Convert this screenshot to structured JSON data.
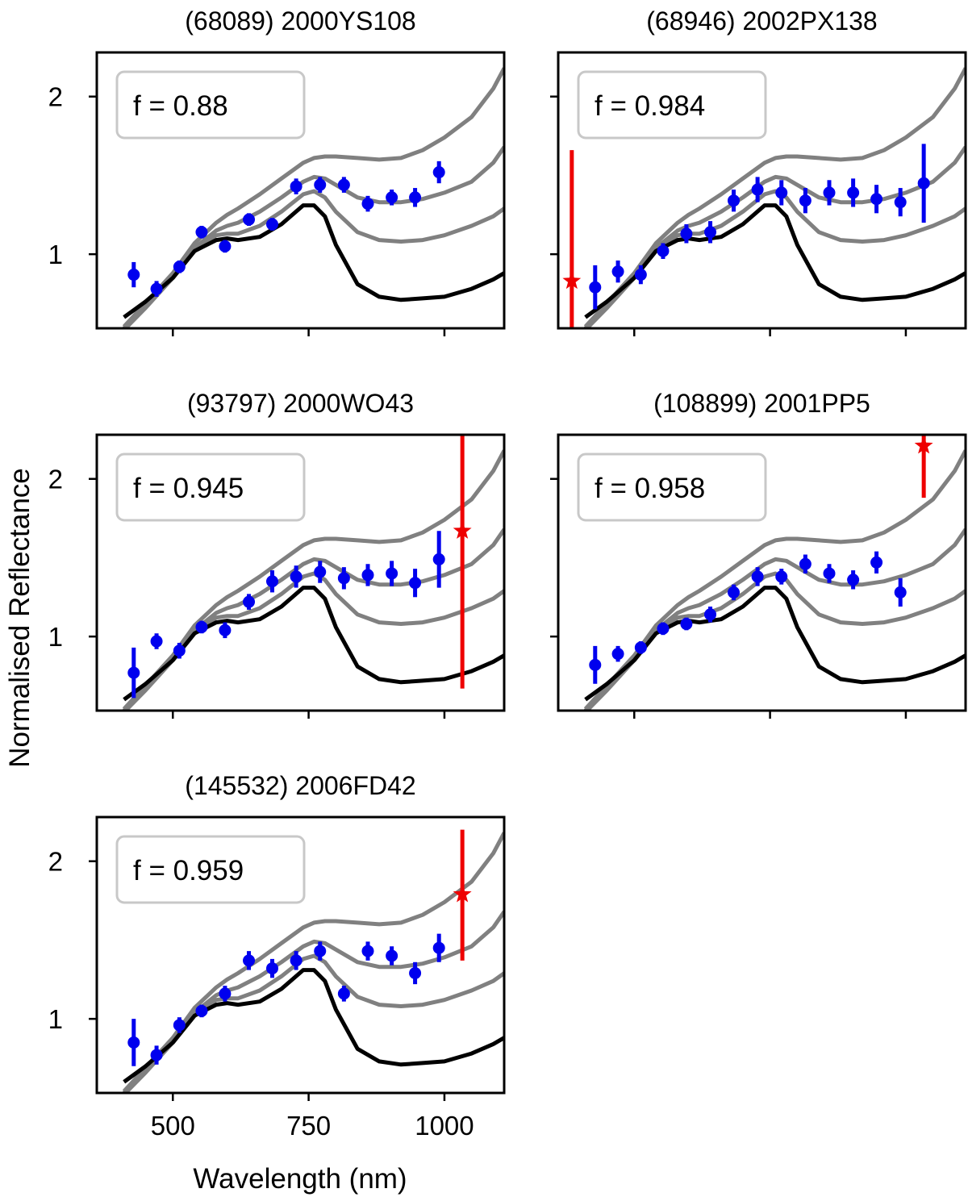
{
  "figure": {
    "ylabel": "Normalised Reflectance",
    "xlabel": "Wavelength (nm)"
  },
  "colors": {
    "obs": "#0000ee",
    "outlier": "#ee0000",
    "model": "#808080",
    "base": "#000000",
    "legend_border": "#c8c8c8"
  },
  "chart_data": [
    {
      "type": "scatter",
      "title": "(68089) 2000YS108",
      "legend": "f = 0.88",
      "xlim": [
        360,
        1110
      ],
      "ylim": [
        0.53,
        2.28
      ],
      "xticks": [
        500,
        750,
        1000
      ],
      "xtick_labels": [
        "",
        "",
        ""
      ],
      "yticks": [
        1,
        2
      ],
      "ytick_labels": [
        "1",
        "2"
      ],
      "points": [
        {
          "x": 428,
          "y": 0.87,
          "err": 0.08
        },
        {
          "x": 470,
          "y": 0.78,
          "err": 0.05
        },
        {
          "x": 512,
          "y": 0.92,
          "err": 0.04
        },
        {
          "x": 553,
          "y": 1.14,
          "err": 0.04
        },
        {
          "x": 596,
          "y": 1.05,
          "err": 0.04
        },
        {
          "x": 640,
          "y": 1.22,
          "err": 0.04
        },
        {
          "x": 683,
          "y": 1.19,
          "err": 0.04
        },
        {
          "x": 727,
          "y": 1.43,
          "err": 0.05
        },
        {
          "x": 771,
          "y": 1.44,
          "err": 0.05
        },
        {
          "x": 815,
          "y": 1.44,
          "err": 0.05
        },
        {
          "x": 859,
          "y": 1.32,
          "err": 0.05
        },
        {
          "x": 903,
          "y": 1.36,
          "err": 0.05
        },
        {
          "x": 946,
          "y": 1.36,
          "err": 0.06
        },
        {
          "x": 990,
          "y": 1.52,
          "err": 0.07
        }
      ],
      "outliers": []
    },
    {
      "type": "scatter",
      "title": "(68946) 2002PX138",
      "legend": "f = 0.984",
      "xlim": [
        360,
        1110
      ],
      "ylim": [
        0.53,
        2.28
      ],
      "xticks": [
        500,
        750,
        1000
      ],
      "xtick_labels": [
        "",
        "",
        ""
      ],
      "yticks": [
        1,
        2
      ],
      "ytick_labels": [
        "",
        ""
      ],
      "points": [
        {
          "x": 428,
          "y": 0.79,
          "err": 0.14
        },
        {
          "x": 470,
          "y": 0.89,
          "err": 0.07
        },
        {
          "x": 512,
          "y": 0.87,
          "err": 0.06
        },
        {
          "x": 553,
          "y": 1.02,
          "err": 0.05
        },
        {
          "x": 596,
          "y": 1.13,
          "err": 0.06
        },
        {
          "x": 640,
          "y": 1.14,
          "err": 0.07
        },
        {
          "x": 683,
          "y": 1.34,
          "err": 0.07
        },
        {
          "x": 727,
          "y": 1.41,
          "err": 0.08
        },
        {
          "x": 771,
          "y": 1.39,
          "err": 0.08
        },
        {
          "x": 815,
          "y": 1.34,
          "err": 0.08
        },
        {
          "x": 859,
          "y": 1.39,
          "err": 0.08
        },
        {
          "x": 903,
          "y": 1.39,
          "err": 0.09
        },
        {
          "x": 946,
          "y": 1.35,
          "err": 0.09
        },
        {
          "x": 990,
          "y": 1.33,
          "err": 0.09
        },
        {
          "x": 1033,
          "y": 1.45,
          "err": 0.25
        }
      ],
      "outliers": [
        {
          "x": 385,
          "y": 0.83,
          "err_low": 0.3,
          "err_high": 1.66
        }
      ]
    },
    {
      "type": "scatter",
      "title": "(93797) 2000WO43",
      "legend": "f = 0.945",
      "xlim": [
        360,
        1110
      ],
      "ylim": [
        0.53,
        2.28
      ],
      "xticks": [
        500,
        750,
        1000
      ],
      "xtick_labels": [
        "",
        "",
        ""
      ],
      "yticks": [
        1,
        2
      ],
      "ytick_labels": [
        "1",
        "2"
      ],
      "points": [
        {
          "x": 428,
          "y": 0.77,
          "err": 0.16
        },
        {
          "x": 470,
          "y": 0.97,
          "err": 0.05
        },
        {
          "x": 512,
          "y": 0.91,
          "err": 0.05
        },
        {
          "x": 553,
          "y": 1.06,
          "err": 0.04
        },
        {
          "x": 596,
          "y": 1.04,
          "err": 0.05
        },
        {
          "x": 640,
          "y": 1.22,
          "err": 0.05
        },
        {
          "x": 683,
          "y": 1.35,
          "err": 0.07
        },
        {
          "x": 727,
          "y": 1.38,
          "err": 0.07
        },
        {
          "x": 771,
          "y": 1.41,
          "err": 0.07
        },
        {
          "x": 815,
          "y": 1.37,
          "err": 0.07
        },
        {
          "x": 859,
          "y": 1.39,
          "err": 0.07
        },
        {
          "x": 903,
          "y": 1.4,
          "err": 0.08
        },
        {
          "x": 946,
          "y": 1.34,
          "err": 0.09
        },
        {
          "x": 990,
          "y": 1.49,
          "err": 0.18
        }
      ],
      "outliers": [
        {
          "x": 1033,
          "y": 1.67,
          "err_low": 0.67,
          "err_high": 2.28
        }
      ]
    },
    {
      "type": "scatter",
      "title": "(108899) 2001PP5",
      "legend": "f = 0.958",
      "xlim": [
        360,
        1110
      ],
      "ylim": [
        0.53,
        2.28
      ],
      "xticks": [
        500,
        750,
        1000
      ],
      "xtick_labels": [
        "",
        "",
        ""
      ],
      "yticks": [
        1,
        2
      ],
      "ytick_labels": [
        "",
        ""
      ],
      "points": [
        {
          "x": 428,
          "y": 0.82,
          "err": 0.12
        },
        {
          "x": 470,
          "y": 0.89,
          "err": 0.05
        },
        {
          "x": 512,
          "y": 0.93,
          "err": 0.04
        },
        {
          "x": 553,
          "y": 1.05,
          "err": 0.04
        },
        {
          "x": 596,
          "y": 1.08,
          "err": 0.04
        },
        {
          "x": 640,
          "y": 1.14,
          "err": 0.05
        },
        {
          "x": 683,
          "y": 1.28,
          "err": 0.05
        },
        {
          "x": 727,
          "y": 1.38,
          "err": 0.06
        },
        {
          "x": 771,
          "y": 1.38,
          "err": 0.05
        },
        {
          "x": 815,
          "y": 1.46,
          "err": 0.06
        },
        {
          "x": 859,
          "y": 1.4,
          "err": 0.06
        },
        {
          "x": 903,
          "y": 1.36,
          "err": 0.06
        },
        {
          "x": 946,
          "y": 1.47,
          "err": 0.07
        },
        {
          "x": 990,
          "y": 1.28,
          "err": 0.09
        }
      ],
      "outliers": [
        {
          "x": 1033,
          "y": 2.21,
          "err_low": 1.88,
          "err_high": 2.28
        }
      ]
    },
    {
      "type": "scatter",
      "title": "(145532) 2006FD42",
      "legend": "f = 0.959",
      "xlim": [
        360,
        1110
      ],
      "ylim": [
        0.53,
        2.28
      ],
      "xticks": [
        500,
        750,
        1000
      ],
      "xtick_labels": [
        "500",
        "750",
        "1000"
      ],
      "yticks": [
        1,
        2
      ],
      "ytick_labels": [
        "1",
        "2"
      ],
      "points": [
        {
          "x": 428,
          "y": 0.85,
          "err": 0.15
        },
        {
          "x": 470,
          "y": 0.77,
          "err": 0.06
        },
        {
          "x": 512,
          "y": 0.96,
          "err": 0.05
        },
        {
          "x": 553,
          "y": 1.05,
          "err": 0.04
        },
        {
          "x": 596,
          "y": 1.16,
          "err": 0.05
        },
        {
          "x": 640,
          "y": 1.37,
          "err": 0.06
        },
        {
          "x": 683,
          "y": 1.32,
          "err": 0.06
        },
        {
          "x": 727,
          "y": 1.37,
          "err": 0.06
        },
        {
          "x": 771,
          "y": 1.43,
          "err": 0.06
        },
        {
          "x": 815,
          "y": 1.16,
          "err": 0.05
        },
        {
          "x": 859,
          "y": 1.43,
          "err": 0.06
        },
        {
          "x": 903,
          "y": 1.4,
          "err": 0.06
        },
        {
          "x": 946,
          "y": 1.29,
          "err": 0.07
        },
        {
          "x": 990,
          "y": 1.45,
          "err": 0.09
        }
      ],
      "outliers": [
        {
          "x": 1033,
          "y": 1.79,
          "err_low": 1.37,
          "err_high": 2.2
        }
      ]
    }
  ],
  "model_curves": {
    "x": [
      410,
      450,
      500,
      540,
      580,
      600,
      620,
      660,
      700,
      740,
      760,
      780,
      800,
      840,
      880,
      920,
      960,
      1000,
      1050,
      1090,
      1110
    ],
    "base": [
      0.6,
      0.7,
      0.85,
      1.02,
      1.09,
      1.1,
      1.09,
      1.11,
      1.19,
      1.31,
      1.31,
      1.24,
      1.06,
      0.81,
      0.73,
      0.71,
      0.72,
      0.73,
      0.78,
      0.84,
      0.88
    ],
    "grey": [
      [
        0.52,
        0.66,
        0.85,
        1.02,
        1.12,
        1.13,
        1.13,
        1.18,
        1.27,
        1.38,
        1.4,
        1.36,
        1.27,
        1.14,
        1.09,
        1.08,
        1.09,
        1.12,
        1.18,
        1.24,
        1.29
      ],
      [
        0.53,
        0.67,
        0.86,
        1.04,
        1.15,
        1.18,
        1.2,
        1.27,
        1.36,
        1.46,
        1.49,
        1.48,
        1.44,
        1.36,
        1.33,
        1.33,
        1.35,
        1.39,
        1.46,
        1.58,
        1.68
      ],
      [
        0.54,
        0.69,
        0.88,
        1.07,
        1.2,
        1.25,
        1.29,
        1.38,
        1.48,
        1.58,
        1.61,
        1.62,
        1.62,
        1.61,
        1.6,
        1.61,
        1.66,
        1.74,
        1.87,
        2.05,
        2.18
      ]
    ]
  }
}
